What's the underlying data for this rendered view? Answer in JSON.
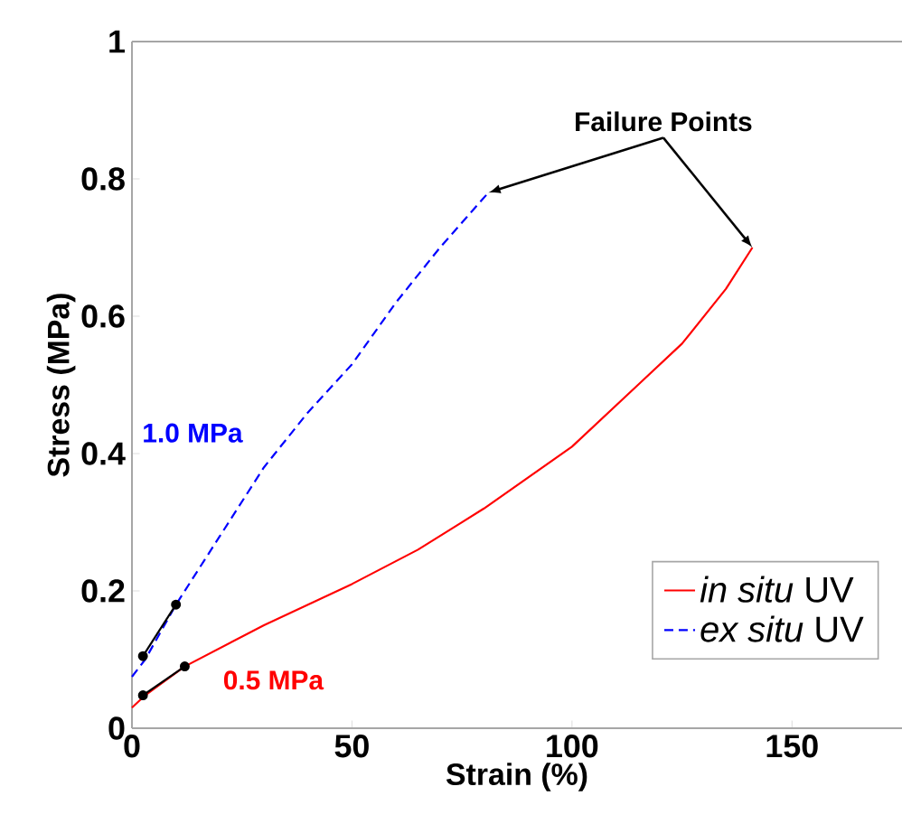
{
  "chart_data": {
    "type": "line",
    "xlabel": "Strain (%)",
    "ylabel": "Stress (MPa)",
    "xlim": [
      0,
      175
    ],
    "ylim": [
      0,
      1
    ],
    "xticks": [
      0,
      50,
      100,
      150
    ],
    "yticks": [
      0,
      0.2,
      0.4,
      0.6,
      0.8,
      1
    ],
    "grid": false,
    "legend": "bottom right",
    "series": [
      {
        "name": "*in situ* UV",
        "color": "#ff0000",
        "line_style": "solid",
        "marker": "none",
        "x": [
          0,
          3,
          12,
          30,
          50,
          65,
          80,
          100,
          115,
          125,
          135,
          141
        ],
        "values": [
          0.03,
          0.048,
          0.09,
          0.15,
          0.21,
          0.26,
          0.32,
          0.41,
          0.5,
          0.56,
          0.64,
          0.7
        ]
      },
      {
        "name": "*ex situ* UV",
        "color": "#0000ff",
        "line_style": "dashed",
        "marker": "none",
        "x": [
          0,
          3,
          10,
          20,
          30,
          40,
          50,
          60,
          70,
          81
        ],
        "values": [
          0.075,
          0.1,
          0.18,
          0.28,
          0.38,
          0.46,
          0.53,
          0.62,
          0.7,
          0.78
        ]
      },
      {
        "color": "#000000",
        "line_style": "solid",
        "marker": "circle",
        "x": [
          2.5,
          12
        ],
        "values": [
          0.048,
          0.09
        ]
      },
      {
        "color": "#000000",
        "line_style": "solid",
        "marker": "circle",
        "x": [
          2.5,
          10
        ],
        "values": [
          0.105,
          0.18
        ]
      }
    ],
    "annotations": [
      {
        "text": "Failure Points",
        "x": 141,
        "y": 0.7
      },
      "1.0 MPa",
      "0.5 MPa"
    ]
  }
}
